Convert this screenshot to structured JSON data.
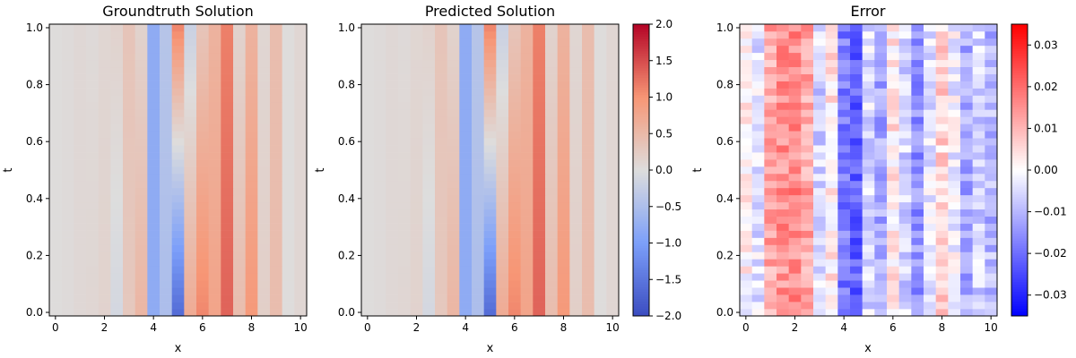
{
  "chart_data": [
    {
      "type": "heatmap",
      "title": "Groundtruth Solution",
      "xlabel": "x",
      "ylabel": "t",
      "xlim": [
        -0.25,
        10.25
      ],
      "ylim": [
        -0.0125,
        1.0125
      ],
      "xticks": [
        0,
        2,
        4,
        6,
        8,
        10
      ],
      "yticks": [
        0.0,
        0.2,
        0.4,
        0.6,
        0.8,
        1.0
      ],
      "colormap": "coolwarm",
      "vrange": [
        -2.0,
        2.0
      ],
      "grid_columns": 21,
      "grid_rows": 41,
      "x_values": [
        0,
        0.5,
        1,
        1.5,
        2,
        2.5,
        3,
        3.5,
        4,
        4.5,
        5,
        5.5,
        6,
        6.5,
        7,
        7.5,
        8,
        8.5,
        9,
        9.5,
        10
      ],
      "column_amplitude": [
        0.02,
        0.04,
        0.08,
        0.1,
        0.15,
        -0.1,
        0.3,
        0.55,
        -0.8,
        -0.5,
        -1.6,
        0.7,
        1.1,
        0.8,
        1.35,
        0.45,
        0.95,
        0.2,
        0.45,
        0.02,
        0.1
      ],
      "column_trend_t1": [
        0.02,
        0.04,
        0.08,
        0.05,
        0.1,
        0.15,
        0.35,
        0.15,
        -0.8,
        -0.4,
        1.1,
        -0.2,
        0.35,
        0.6,
        1.15,
        0.15,
        0.6,
        0.1,
        0.45,
        0.02,
        0.1
      ]
    },
    {
      "type": "heatmap",
      "title": "Predicted Solution",
      "xlabel": "x",
      "ylabel": "t",
      "xlim": [
        -0.25,
        10.25
      ],
      "ylim": [
        -0.0125,
        1.0125
      ],
      "xticks": [
        0,
        2,
        4,
        6,
        8,
        10
      ],
      "yticks": [
        0.0,
        0.2,
        0.4,
        0.6,
        0.8,
        1.0
      ],
      "colormap": "coolwarm",
      "vrange": [
        -2.0,
        2.0
      ],
      "colorbar_ticks": [
        -2.0,
        -1.5,
        -1.0,
        -0.5,
        0.0,
        0.5,
        1.0,
        1.5,
        2.0
      ],
      "colorbar_tick_labels": [
        "−2.0",
        "−1.5",
        "−1.0",
        "−0.5",
        "0.0",
        "0.5",
        "1.0",
        "1.5",
        "2.0"
      ],
      "grid_columns": 21,
      "grid_rows": 41,
      "x_values": [
        0,
        0.5,
        1,
        1.5,
        2,
        2.5,
        3,
        3.5,
        4,
        4.5,
        5,
        5.5,
        6,
        6.5,
        7,
        7.5,
        8,
        8.5,
        9,
        9.5,
        10
      ],
      "column_amplitude": [
        0.02,
        0.04,
        0.08,
        0.1,
        0.15,
        -0.1,
        0.3,
        0.55,
        -0.8,
        -0.5,
        -1.6,
        0.7,
        1.1,
        0.8,
        1.35,
        0.45,
        0.95,
        0.2,
        0.45,
        0.02,
        0.1
      ],
      "column_trend_t1": [
        0.02,
        0.04,
        0.08,
        0.05,
        0.1,
        0.15,
        0.35,
        0.15,
        -0.8,
        -0.4,
        1.1,
        -0.2,
        0.35,
        0.6,
        1.15,
        0.15,
        0.6,
        0.1,
        0.45,
        0.02,
        0.1
      ]
    },
    {
      "type": "heatmap",
      "title": "Error",
      "xlabel": "x",
      "ylabel": "t",
      "xlim": [
        -0.25,
        10.25
      ],
      "ylim": [
        -0.0125,
        1.0125
      ],
      "xticks": [
        0,
        2,
        4,
        6,
        8,
        10
      ],
      "yticks": [
        0.0,
        0.2,
        0.4,
        0.6,
        0.8,
        1.0
      ],
      "colormap": "bwr",
      "vrange": [
        -0.035,
        0.035
      ],
      "colorbar_ticks": [
        -0.03,
        -0.02,
        -0.01,
        0.0,
        0.01,
        0.02,
        0.03
      ],
      "colorbar_tick_labels": [
        "−0.03",
        "−0.02",
        "−0.01",
        "0.00",
        "0.01",
        "0.02",
        "0.03"
      ],
      "grid_columns": 21,
      "grid_rows": 41,
      "x_values": [
        0,
        0.5,
        1,
        1.5,
        2,
        2.5,
        3,
        3.5,
        4,
        4.5,
        5,
        5.5,
        6,
        6.5,
        7,
        7.5,
        8,
        8.5,
        9,
        9.5,
        10
      ],
      "column_error_mean": [
        0.001,
        -0.004,
        0.012,
        0.015,
        0.016,
        0.012,
        -0.006,
        0.003,
        -0.018,
        -0.022,
        -0.005,
        -0.012,
        0.003,
        -0.006,
        -0.015,
        -0.004,
        0.006,
        -0.002,
        -0.012,
        -0.006,
        -0.01
      ]
    }
  ]
}
